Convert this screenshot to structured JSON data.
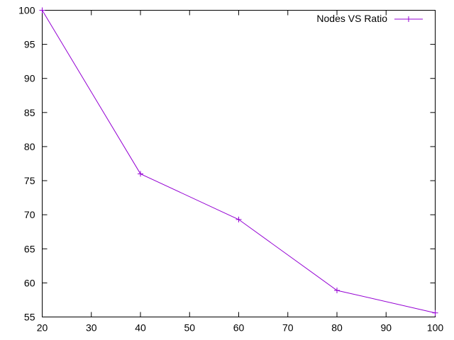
{
  "chart_data": {
    "type": "line",
    "title": "",
    "xlabel": "",
    "ylabel": "",
    "xlim": [
      20,
      100
    ],
    "ylim": [
      55,
      100
    ],
    "xticks": [
      20,
      30,
      40,
      50,
      60,
      70,
      80,
      90,
      100
    ],
    "yticks": [
      55,
      60,
      65,
      70,
      75,
      80,
      85,
      90,
      95,
      100
    ],
    "grid": false,
    "legend_position": "top-right",
    "series": [
      {
        "name": "Nodes VS Ratio",
        "color": "#9400d3",
        "marker": "plus",
        "x": [
          20,
          40,
          60,
          80,
          100
        ],
        "y": [
          100,
          76,
          69.3,
          58.9,
          55.6
        ]
      }
    ]
  }
}
